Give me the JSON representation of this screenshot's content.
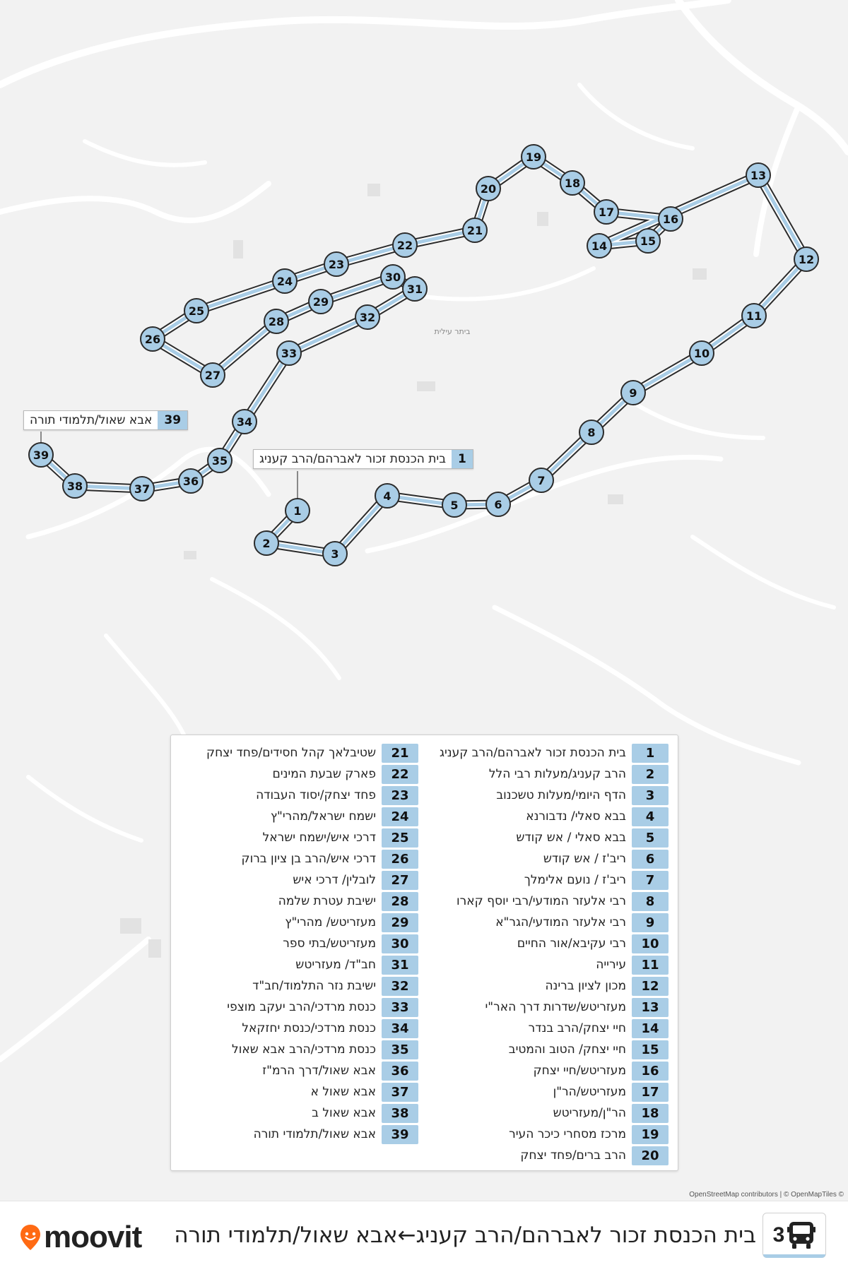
{
  "map": {
    "place_label": "ביתר עילית",
    "attribution": "OpenStreetMap contributors | © OpenMapTiles ©",
    "route_color": "#a9cde6",
    "route_outline": "#2b2b2b",
    "stop_fill": "#a9cde6"
  },
  "route": {
    "number": "3",
    "title": "בית הכנסת זכור לאברהם/הרב קעניג←אבא שאול/תלמודי תורה",
    "icon": "bus-icon",
    "brand": "moovit",
    "brand_icon": "moovit-pin-icon"
  },
  "callouts": {
    "start": {
      "num": "1",
      "text": "בית הכנסת זכור לאברהם/הרב קעניג"
    },
    "end": {
      "num": "39",
      "text": "אבא שאול/תלמודי תורה"
    }
  },
  "stops": [
    {
      "num": "1",
      "name": "בית הכנסת זכור לאברהם/הרב קעניג"
    },
    {
      "num": "2",
      "name": "הרב קעניג/מעלות רבי הלל"
    },
    {
      "num": "3",
      "name": "הדף היומי/מעלות טשכנוב"
    },
    {
      "num": "4",
      "name": "בבא סאלי/ נדבורנא"
    },
    {
      "num": "5",
      "name": "בבא סאלי / אש קודש"
    },
    {
      "num": "6",
      "name": "ריב'ז / אש קודש"
    },
    {
      "num": "7",
      "name": "ריב'ז / נועם אלימלך"
    },
    {
      "num": "8",
      "name": "רבי אלעזר המודעי/רבי יוסף קארו"
    },
    {
      "num": "9",
      "name": "רבי אלעזר המודעי/הגר\"א"
    },
    {
      "num": "10",
      "name": "רבי עקיבא/אור החיים"
    },
    {
      "num": "11",
      "name": "עירייה"
    },
    {
      "num": "12",
      "name": "מכון לציון ברינה"
    },
    {
      "num": "13",
      "name": "מעזריטש/שדרות דרך האר\"י"
    },
    {
      "num": "14",
      "name": "חיי יצחק/הרב בנדר"
    },
    {
      "num": "15",
      "name": "חיי יצחק/ הטוב והמטיב"
    },
    {
      "num": "16",
      "name": "מעזריטש/חיי יצחק"
    },
    {
      "num": "17",
      "name": "מעזריטש/הר\"ן"
    },
    {
      "num": "18",
      "name": "הר\"ן/מעזריטש"
    },
    {
      "num": "19",
      "name": "מרכז מסחרי כיכר העיר"
    },
    {
      "num": "20",
      "name": "הרב ברים/פחד יצחק"
    },
    {
      "num": "21",
      "name": "שטיבלאך קהל חסידים/פחד יצחק"
    },
    {
      "num": "22",
      "name": "פארק שבעת המינים"
    },
    {
      "num": "23",
      "name": "פחד יצחק/יסוד העבודה"
    },
    {
      "num": "24",
      "name": "ישמח ישראל/מהרי\"ץ"
    },
    {
      "num": "25",
      "name": "דרכי איש/ישמח ישראל"
    },
    {
      "num": "26",
      "name": "דרכי איש/הרב בן ציון ברוק"
    },
    {
      "num": "27",
      "name": "לובלין/ דרכי איש"
    },
    {
      "num": "28",
      "name": "ישיבת עטרת שלמה"
    },
    {
      "num": "29",
      "name": "מעזריטש/ מהרי\"ץ"
    },
    {
      "num": "30",
      "name": "מעזריטש/בתי ספר"
    },
    {
      "num": "31",
      "name": "חב\"ד/ מעזריטש"
    },
    {
      "num": "32",
      "name": "ישיבת נזר התלמוד/חב\"ד"
    },
    {
      "num": "33",
      "name": "כנסת מרדכי/הרב יעקב מוצפי"
    },
    {
      "num": "34",
      "name": "כנסת מרדכי/כנסת יחזקאל"
    },
    {
      "num": "35",
      "name": "כנסת מרדכי/הרב אבא שאול"
    },
    {
      "num": "36",
      "name": "אבא שאול/דרך הרמ\"ז"
    },
    {
      "num": "37",
      "name": "אבא שאול א"
    },
    {
      "num": "38",
      "name": "אבא שאול ב"
    },
    {
      "num": "39",
      "name": "אבא שאול/תלמודי תורה"
    }
  ]
}
